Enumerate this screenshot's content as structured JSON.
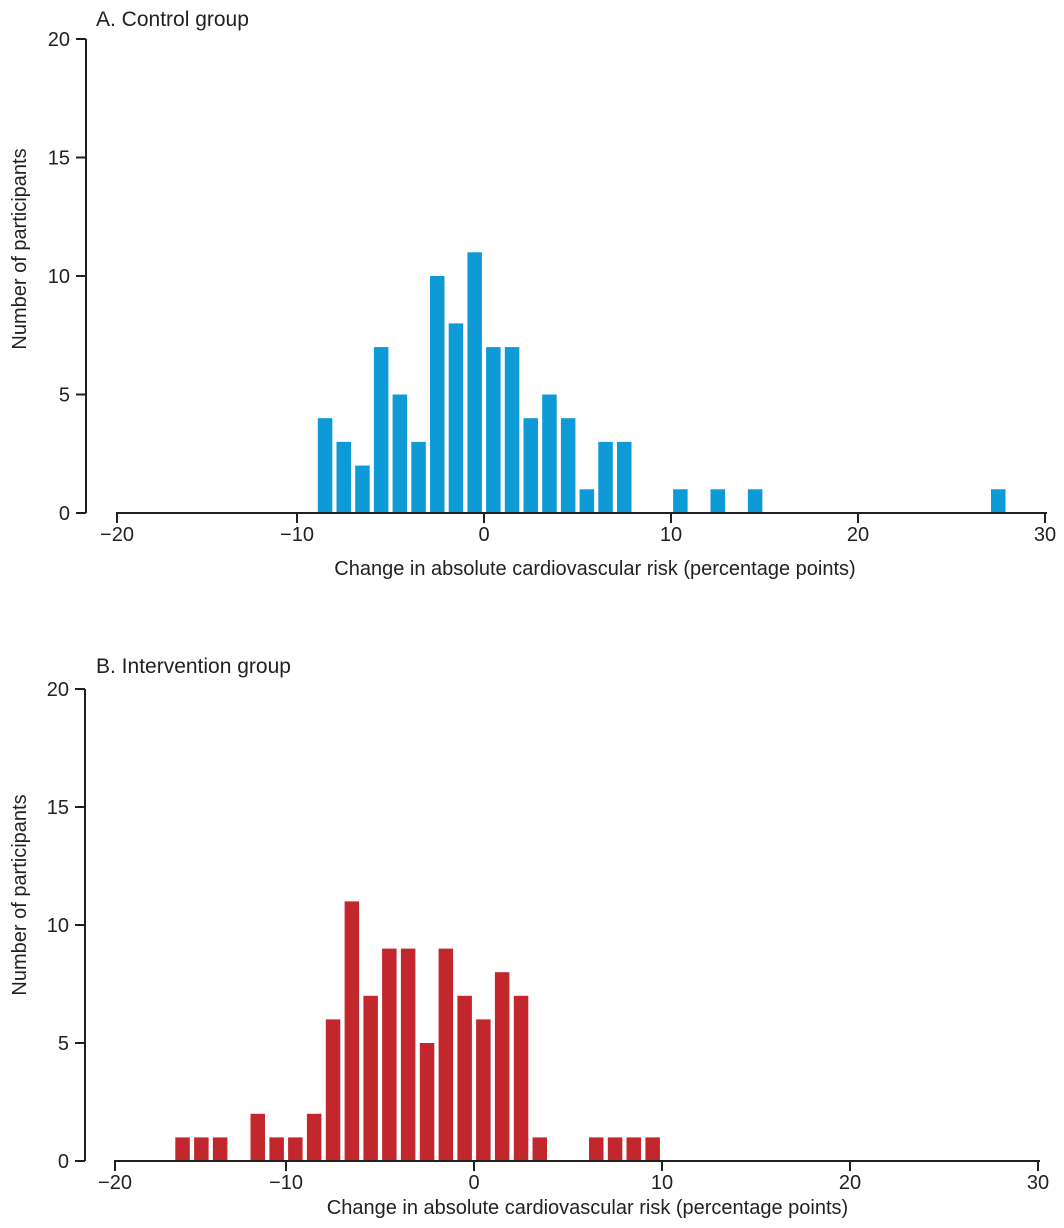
{
  "colors": {
    "axis": "#231F20",
    "background": "#FFFFFF",
    "control_bar": "#0D9AD6",
    "intervention_bar": "#C1272D"
  },
  "chart_data": [
    {
      "type": "bar",
      "subtype": "histogram",
      "panel_label": "A",
      "title": "A. Control group",
      "xlabel": "Change in absolute cardiovascular risk (percentage points)",
      "ylabel": "Number of participants",
      "bar_color": "#0D9AD6",
      "xlim": [
        -20,
        30
      ],
      "ylim": [
        0,
        20
      ],
      "xticks": [
        -20,
        -10,
        0,
        10,
        20,
        30
      ],
      "xtick_labels": [
        "−20",
        "−10",
        "0",
        "10",
        "20",
        "30"
      ],
      "yticks": [
        0,
        5,
        10,
        15,
        20
      ],
      "grid": false,
      "legend": "none",
      "bin_width": 1,
      "x": [
        -8.5,
        -7.5,
        -6.5,
        -5.5,
        -4.5,
        -3.5,
        -2.5,
        -1.5,
        -0.5,
        0.5,
        1.5,
        2.5,
        3.5,
        4.5,
        5.5,
        6.5,
        7.5,
        10.5,
        12.5,
        14.5,
        27.5
      ],
      "counts": [
        4,
        3,
        2,
        7,
        5,
        3,
        10,
        8,
        11,
        7,
        7,
        4,
        5,
        4,
        1,
        3,
        3,
        1,
        1,
        1,
        1
      ]
    },
    {
      "type": "bar",
      "subtype": "histogram",
      "panel_label": "B",
      "title": "B. Intervention group",
      "xlabel": "Change in absolute cardiovascular risk (percentage points)",
      "ylabel": "Number of participants",
      "bar_color": "#C1272D",
      "xlim": [
        -20,
        30
      ],
      "ylim": [
        0,
        20
      ],
      "xticks": [
        -20,
        -10,
        0,
        10,
        20,
        30
      ],
      "xtick_labels": [
        "−20",
        "−10",
        "0",
        "10",
        "20",
        "30"
      ],
      "yticks": [
        0,
        5,
        10,
        15,
        20
      ],
      "grid": false,
      "legend": "none",
      "bin_width": 1,
      "x": [
        -15.5,
        -14.5,
        -13.5,
        -11.5,
        -10.5,
        -9.5,
        -8.5,
        -7.5,
        -6.5,
        -5.5,
        -4.5,
        -3.5,
        -2.5,
        -1.5,
        -0.5,
        0.5,
        1.5,
        2.5,
        3.5,
        6.5,
        7.5,
        8.5,
        9.5
      ],
      "counts": [
        1,
        1,
        1,
        2,
        1,
        1,
        2,
        6,
        11,
        7,
        9,
        9,
        5,
        9,
        7,
        6,
        8,
        7,
        1,
        1,
        1,
        1,
        1
      ]
    }
  ]
}
